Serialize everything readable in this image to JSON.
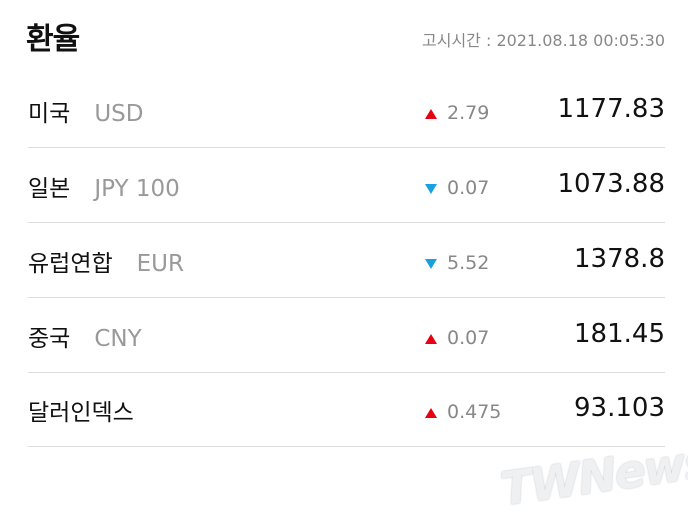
{
  "header": {
    "title": "환율",
    "timestamp": "고시시간 : 2021.08.18 00:05:30"
  },
  "rows": [
    {
      "name": "미국",
      "code": "USD",
      "direction": "up",
      "change": "2.79",
      "rate": "1177.83"
    },
    {
      "name": "일본",
      "code": "JPY 100",
      "direction": "down",
      "change": "0.07",
      "rate": "1073.88"
    },
    {
      "name": "유럽연합",
      "code": "EUR",
      "direction": "down",
      "change": "5.52",
      "rate": "1378.8"
    },
    {
      "name": "중국",
      "code": "CNY",
      "direction": "up",
      "change": "0.07",
      "rate": "181.45"
    },
    {
      "name": "달러인덱스",
      "code": null,
      "direction": "up",
      "change": "0.475",
      "rate": "93.103"
    }
  ],
  "watermark": "TWNews"
}
